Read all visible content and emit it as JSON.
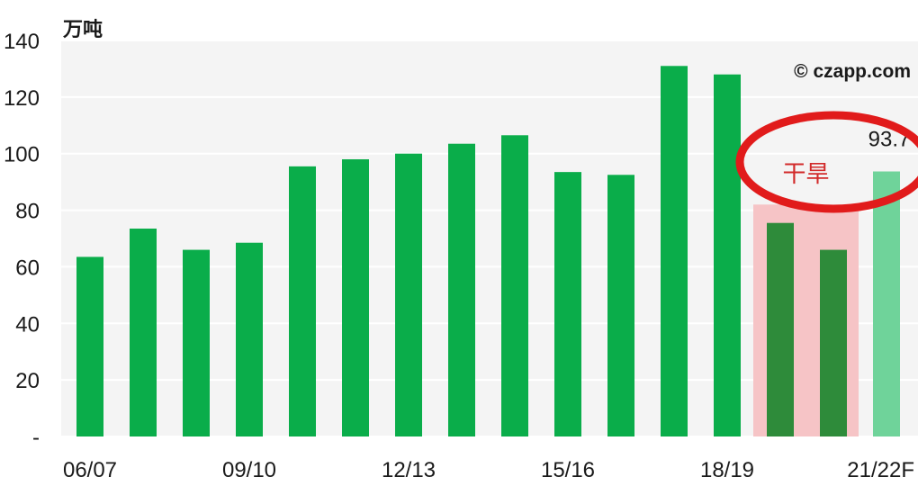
{
  "chart_data": {
    "type": "bar",
    "unit": "万吨",
    "credit": "© czapp.com",
    "yticks": [
      "140",
      "120",
      "100",
      "80",
      "60",
      "40",
      "20",
      "-"
    ],
    "ylim": [
      0,
      140
    ],
    "xticks_shown": [
      "06/07",
      "09/10",
      "12/13",
      "15/16",
      "18/19",
      "21/22F"
    ],
    "categories": [
      "06/07",
      "07/08",
      "08/09",
      "09/10",
      "10/11",
      "11/12",
      "12/13",
      "13/14",
      "14/15",
      "15/16",
      "16/17",
      "17/18",
      "18/19",
      "19/20",
      "20/21",
      "21/22F"
    ],
    "values": [
      63.5,
      73.5,
      66.0,
      68.5,
      95.5,
      98.0,
      100.0,
      103.5,
      106.5,
      93.5,
      92.5,
      131.0,
      128.0,
      75.5,
      66.0,
      93.7
    ],
    "bar_kind": [
      "actual",
      "actual",
      "actual",
      "actual",
      "actual",
      "actual",
      "actual",
      "actual",
      "actual",
      "actual",
      "actual",
      "actual",
      "actual",
      "drought",
      "drought",
      "forecast"
    ],
    "data_label": {
      "index": 15,
      "text": "93.7"
    },
    "drought_label": "干旱",
    "colors": {
      "actual": "#0aad4a",
      "drought": "#2e8b3a",
      "forecast": "#6fd39a",
      "drought_band": "#f6c4c6",
      "circle": "#e11b1b",
      "plot_bg": "#f4f4f4",
      "grid": "#ffffff"
    }
  }
}
